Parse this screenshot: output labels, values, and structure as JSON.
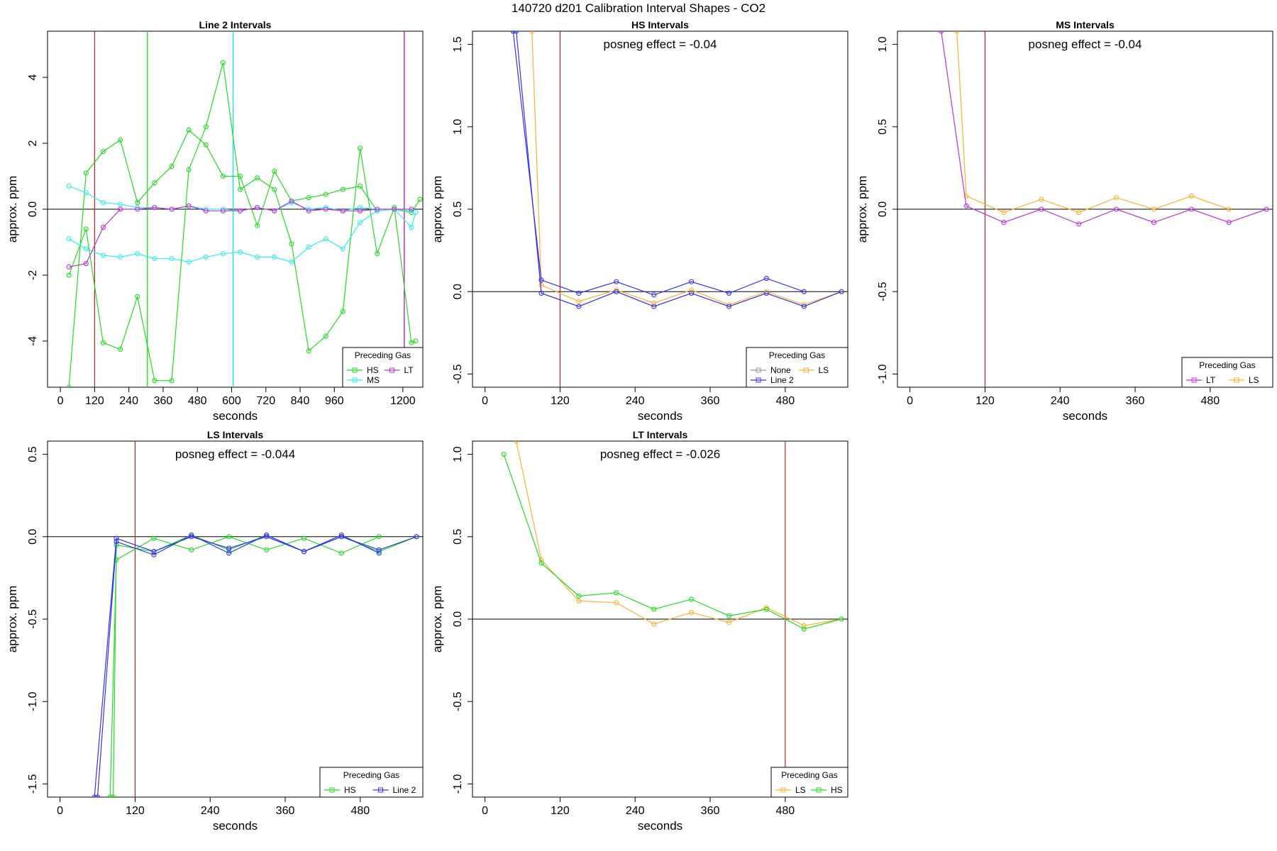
{
  "page_title": "140720  d201   Calibration Interval Shapes - CO2",
  "chart_data": [
    {
      "type": "line",
      "title": "Line 2 Intervals",
      "xlabel": "seconds",
      "ylabel": "approx. ppm",
      "xlim": [
        -45,
        1270
      ],
      "ylim": [
        -5.4,
        5.4
      ],
      "xticks": [
        0,
        120,
        240,
        360,
        480,
        600,
        720,
        840,
        960,
        1200
      ],
      "yticks": [
        -4,
        -2,
        0,
        2,
        4
      ],
      "annotation": "",
      "vlines": [
        {
          "x": 120,
          "color": "#b22222"
        },
        {
          "x": 305,
          "color": "#00e000"
        },
        {
          "x": 605,
          "color": "#00e5ee"
        },
        {
          "x": 1205,
          "color": "#b000b0"
        }
      ],
      "legend": {
        "title": "Preceding Gas",
        "position": "bottom-right",
        "entries": [
          {
            "label": "HS",
            "color": "#22dd22"
          },
          {
            "label": "LT",
            "color": "#bb33dd"
          },
          {
            "label": "MS",
            "color": "#33eeee"
          }
        ]
      },
      "series": [
        {
          "name": "HS",
          "color": "#22dd22",
          "x": [
            30,
            90,
            150,
            210,
            270,
            330,
            390,
            450,
            510,
            570,
            630,
            690,
            750,
            810,
            870,
            930,
            990,
            1050,
            1110,
            1170,
            1230,
            1260
          ],
          "y": [
            -5.4,
            1.1,
            1.75,
            2.1,
            0.2,
            0.8,
            1.3,
            2.4,
            1.95,
            1.0,
            1.0,
            -0.5,
            1.15,
            0.25,
            0.35,
            0.45,
            0.6,
            0.7,
            -0.05,
            0.0,
            -0.1,
            0.3
          ]
        },
        {
          "name": "HS",
          "color": "#22dd22",
          "x": [
            30,
            90,
            150,
            210,
            270,
            330,
            390,
            450,
            510,
            570,
            630,
            690,
            750,
            810,
            870,
            930,
            990,
            1050,
            1110,
            1170,
            1230,
            1245
          ],
          "y": [
            -2.0,
            -0.6,
            -4.05,
            -4.25,
            -2.65,
            -5.2,
            -5.2,
            1.2,
            2.5,
            4.45,
            0.6,
            0.95,
            0.6,
            -1.05,
            -4.3,
            -3.85,
            -3.1,
            1.85,
            -1.35,
            0.05,
            -4.05,
            -4.0
          ]
        },
        {
          "name": "MS",
          "color": "#33eeee",
          "x": [
            30,
            90,
            150,
            210,
            270,
            330,
            390,
            450,
            510,
            570,
            630,
            690,
            750,
            810,
            870,
            930,
            990,
            1050,
            1110,
            1170,
            1230
          ],
          "y": [
            0.7,
            0.5,
            0.2,
            0.15,
            0.05,
            0.05,
            0.0,
            0.1,
            0.0,
            0.0,
            -0.05,
            0.05,
            -0.05,
            0.2,
            0.0,
            0.05,
            -0.05,
            0.05,
            0.0,
            0.0,
            -0.05
          ]
        },
        {
          "name": "MS",
          "color": "#33eeee",
          "x": [
            30,
            90,
            150,
            210,
            270,
            330,
            390,
            450,
            510,
            570,
            630,
            690,
            750,
            810,
            870,
            930,
            990,
            1050,
            1110,
            1170,
            1230,
            1245
          ],
          "y": [
            -0.9,
            -1.2,
            -1.4,
            -1.45,
            -1.35,
            -1.5,
            -1.5,
            -1.6,
            -1.45,
            -1.35,
            -1.3,
            -1.45,
            -1.45,
            -1.6,
            -1.15,
            -0.9,
            -1.2,
            -0.4,
            -0.05,
            0.0,
            -0.55,
            -0.1
          ]
        },
        {
          "name": "LT",
          "color": "#bb33dd",
          "x": [
            30,
            90,
            150,
            210,
            270,
            330,
            390,
            450,
            510,
            570,
            630,
            690,
            750,
            810,
            870,
            930,
            990,
            1050,
            1110,
            1170,
            1230
          ],
          "y": [
            -1.75,
            -1.65,
            -0.55,
            0.0,
            0.0,
            0.05,
            0.0,
            0.1,
            -0.05,
            -0.05,
            -0.05,
            0.05,
            -0.05,
            0.25,
            -0.05,
            0.0,
            -0.05,
            -0.05,
            0.0,
            0.0,
            0.0
          ]
        }
      ]
    },
    {
      "type": "line",
      "title": "HS Intervals",
      "xlabel": "seconds",
      "ylabel": "approx. ppm",
      "xlim": [
        -20,
        580
      ],
      "ylim": [
        -0.58,
        1.58
      ],
      "xticks": [
        0,
        120,
        240,
        360,
        480
      ],
      "yticks": [
        -0.5,
        0.0,
        0.5,
        1.0,
        1.5
      ],
      "annotation": "posneg effect = -0.04",
      "vlines": [
        {
          "x": 120,
          "color": "#b22222"
        }
      ],
      "legend": {
        "title": "Preceding Gas",
        "position": "bottom-right",
        "entries": [
          {
            "label": "None",
            "color": "#999999"
          },
          {
            "label": "LS",
            "color": "#ffb030"
          },
          {
            "label": "Line 2",
            "color": "#3333ee"
          }
        ]
      },
      "series": [
        {
          "name": "LS",
          "color": "#ffb030",
          "x": [
            75,
            90,
            150,
            210,
            270,
            330,
            390,
            450,
            510,
            570
          ],
          "y": [
            1.58,
            0.04,
            -0.06,
            0.01,
            -0.07,
            0.01,
            -0.08,
            0.0,
            -0.08,
            0.0
          ]
        },
        {
          "name": "Line 2",
          "color": "#3333ee",
          "x": [
            45,
            90,
            150,
            210,
            270,
            330,
            390,
            450,
            510
          ],
          "y": [
            1.58,
            0.07,
            -0.01,
            0.06,
            -0.02,
            0.06,
            -0.01,
            0.08,
            0.0
          ]
        },
        {
          "name": "Line 2",
          "color": "#3333ee",
          "x": [
            50,
            90,
            150,
            210,
            270,
            330,
            390,
            450,
            510,
            570
          ],
          "y": [
            1.58,
            -0.01,
            -0.09,
            0.0,
            -0.09,
            -0.01,
            -0.09,
            -0.01,
            -0.09,
            0.0
          ]
        }
      ]
    },
    {
      "type": "line",
      "title": "MS Intervals",
      "xlabel": "seconds",
      "ylabel": "approx. ppm",
      "xlim": [
        -20,
        580
      ],
      "ylim": [
        -1.08,
        1.08
      ],
      "xticks": [
        0,
        120,
        240,
        360,
        480
      ],
      "yticks": [
        -1.0,
        -0.5,
        0.0,
        0.5,
        1.0
      ],
      "annotation": "posneg effect = -0.04",
      "vlines": [
        {
          "x": 120,
          "color": "#b22222"
        }
      ],
      "legend": {
        "title": "Preceding Gas",
        "position": "bottom-right",
        "entries": [
          {
            "label": "LT",
            "color": "#bb33dd"
          },
          {
            "label": "LS",
            "color": "#ffb030"
          }
        ]
      },
      "series": [
        {
          "name": "LS",
          "color": "#ffb030",
          "x": [
            75,
            90,
            150,
            210,
            270,
            330,
            390,
            450,
            510
          ],
          "y": [
            1.08,
            0.08,
            -0.02,
            0.06,
            -0.02,
            0.07,
            0.0,
            0.08,
            0.0
          ]
        },
        {
          "name": "LT",
          "color": "#bb33dd",
          "x": [
            50,
            90,
            150,
            210,
            270,
            330,
            390,
            450,
            510,
            570
          ],
          "y": [
            1.08,
            0.02,
            -0.08,
            0.0,
            -0.09,
            0.0,
            -0.08,
            0.0,
            -0.08,
            0.0
          ]
        }
      ]
    },
    {
      "type": "line",
      "title": "LS Intervals",
      "xlabel": "seconds",
      "ylabel": "approx. ppm",
      "xlim": [
        -20,
        580
      ],
      "ylim": [
        -1.58,
        0.58
      ],
      "xticks": [
        0,
        120,
        240,
        360,
        480
      ],
      "yticks": [
        -1.5,
        -1.0,
        -0.5,
        0.0,
        0.5
      ],
      "annotation": "posneg effect = -0.044",
      "vlines": [
        {
          "x": 120,
          "color": "#b22222"
        }
      ],
      "legend": {
        "title": "Preceding Gas",
        "position": "bottom-right",
        "entries": [
          {
            "label": "HS",
            "color": "#22dd22"
          },
          {
            "label": "Line 2",
            "color": "#3333ee"
          }
        ]
      },
      "series": [
        {
          "name": "HS",
          "color": "#22dd22",
          "x": [
            80,
            90,
            150,
            210,
            270,
            330,
            390,
            450,
            510
          ],
          "y": [
            -1.58,
            -0.14,
            -0.01,
            -0.08,
            0.0,
            -0.08,
            -0.01,
            -0.1,
            0.0
          ]
        },
        {
          "name": "HS",
          "color": "#22dd22",
          "x": [
            85,
            90,
            150,
            210,
            270,
            330,
            390,
            450,
            510,
            570
          ],
          "y": [
            -1.58,
            -0.05,
            -0.09,
            0.01,
            -0.08,
            0.01,
            -0.09,
            0.0,
            -0.09,
            0.0
          ]
        },
        {
          "name": "Line 2",
          "color": "#3333ee",
          "x": [
            55,
            90,
            150,
            210,
            270,
            330,
            390,
            450,
            510,
            570
          ],
          "y": [
            -1.58,
            -0.01,
            -0.09,
            0.0,
            -0.07,
            0.0,
            -0.09,
            0.0,
            -0.08,
            0.0
          ]
        },
        {
          "name": "Line 2",
          "color": "#3333ee",
          "x": [
            60,
            90,
            150,
            210,
            270,
            330,
            390,
            450,
            510
          ],
          "y": [
            -1.58,
            -0.03,
            -0.11,
            0.01,
            -0.1,
            0.01,
            -0.09,
            0.01,
            -0.1
          ]
        }
      ]
    },
    {
      "type": "line",
      "title": "LT Intervals",
      "xlabel": "seconds",
      "ylabel": "approx. ppm",
      "xlim": [
        -20,
        580
      ],
      "ylim": [
        -1.08,
        1.08
      ],
      "xticks": [
        0,
        120,
        240,
        360,
        480
      ],
      "yticks": [
        -1.0,
        -0.5,
        0.0,
        0.5,
        1.0
      ],
      "annotation": "posneg effect = -0.026",
      "vlines": [
        {
          "x": 480,
          "color": "#b22222"
        }
      ],
      "legend": {
        "title": "Preceding Gas",
        "position": "bottom-right",
        "entries": [
          {
            "label": "LS",
            "color": "#ffb030"
          },
          {
            "label": "HS",
            "color": "#22dd22"
          }
        ]
      },
      "series": [
        {
          "name": "LS",
          "color": "#ffb030",
          "x": [
            50,
            90,
            150,
            210,
            270,
            330,
            390,
            450,
            510,
            570
          ],
          "y": [
            1.08,
            0.36,
            0.11,
            0.1,
            -0.03,
            0.04,
            -0.02,
            0.07,
            -0.04,
            0.0
          ]
        },
        {
          "name": "HS",
          "color": "#22dd22",
          "x": [
            30,
            90,
            150,
            210,
            270,
            330,
            390,
            450,
            510,
            570
          ],
          "y": [
            1.0,
            0.34,
            0.14,
            0.16,
            0.06,
            0.12,
            0.02,
            0.06,
            -0.06,
            0.0
          ]
        }
      ]
    }
  ]
}
